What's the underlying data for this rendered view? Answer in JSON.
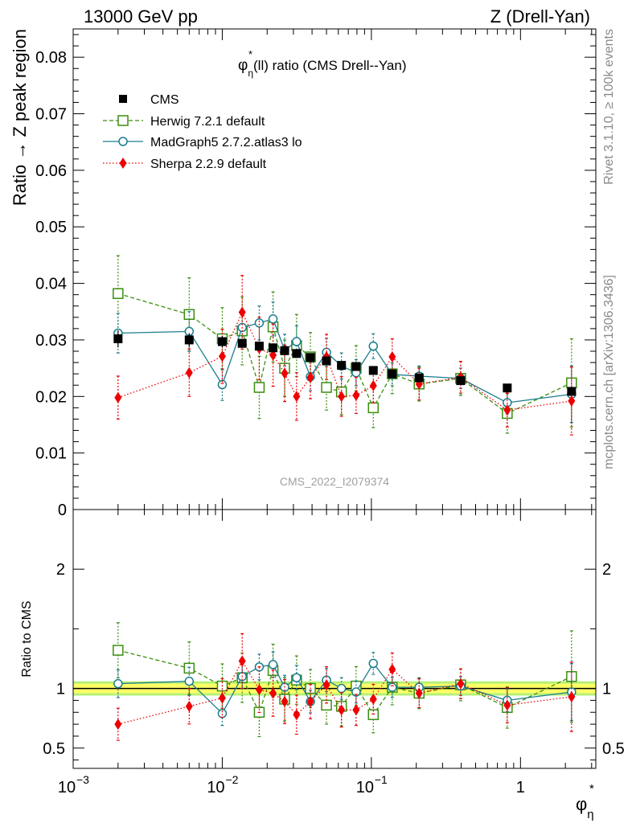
{
  "header": {
    "left": "13000 GeV pp",
    "right": "Z (Drell-Yan)"
  },
  "side_labels": {
    "rivet": "Rivet 3.1.10, ≥ 100k events",
    "mcplots": "mcplots.cern.ch [arXiv:1306.3436]"
  },
  "colors": {
    "cms": "#000000",
    "herwig": "#3a8f0e",
    "madgraph": "#1b7d8c",
    "sherpa": "#ee0000",
    "band_inner": "#ffff66",
    "band_outer": "#b6f07a"
  },
  "chart_data": [
    {
      "type": "scatter",
      "title": "(ll) ratio (CMS Drell--Yan)",
      "title_symbol": "φ",
      "title_sup": "*",
      "title_sub": "η",
      "ylabel": "Ratio → Z peak region",
      "xlabel_symbol": "φ",
      "xlabel_sup": "*",
      "xlabel_sub": "η",
      "xscale": "log",
      "xlim": [
        0.001,
        3.2
      ],
      "ylim": [
        0,
        0.085
      ],
      "yticks": [
        0,
        0.01,
        0.02,
        0.03,
        0.04,
        0.05,
        0.06,
        0.07,
        0.08
      ],
      "ytick_labels": [
        "0",
        "0.01",
        "0.02",
        "0.03",
        "0.04",
        "0.05",
        "0.06",
        "0.07",
        "0.08"
      ],
      "watermark": "CMS_2022_I2079374",
      "legend_position": "top-left",
      "x": [
        0.002,
        0.006,
        0.01,
        0.0136,
        0.0177,
        0.0219,
        0.0262,
        0.0315,
        0.039,
        0.05,
        0.063,
        0.079,
        0.103,
        0.138,
        0.209,
        0.397,
        0.815,
        2.2
      ],
      "series": [
        {
          "name": "CMS",
          "marker": "square-filled",
          "line": "none",
          "values": [
            0.0302,
            0.03,
            0.0297,
            0.0294,
            0.0289,
            0.0286,
            0.0281,
            0.0276,
            0.0269,
            0.0263,
            0.0255,
            0.0253,
            0.0246,
            0.024,
            0.0233,
            0.0228,
            0.0215,
            0.0209
          ],
          "errors": [
            0.0015,
            0.0012,
            0.001,
            0.0008,
            0.0007,
            0.0006,
            0.0006,
            0.0006,
            0.0005,
            0.0005,
            0.0005,
            0.0005,
            0.0005,
            0.0005,
            0.0005,
            0.0005,
            0.0006,
            0.0008
          ]
        },
        {
          "name": "Herwig 7.2.1 default",
          "marker": "square-open",
          "line": "dashed",
          "values": [
            0.0382,
            0.0345,
            0.0302,
            0.0316,
            0.0216,
            0.0323,
            0.025,
            0.029,
            0.027,
            0.0216,
            0.0208,
            0.025,
            0.018,
            0.024,
            0.0222,
            0.0232,
            0.017,
            0.0224
          ],
          "errors": [
            0.0067,
            0.0065,
            0.0055,
            0.006,
            0.0055,
            0.0062,
            0.005,
            0.0055,
            0.0043,
            0.004,
            0.004,
            0.004,
            0.0035,
            0.0035,
            0.003,
            0.003,
            0.0035,
            0.0078
          ]
        },
        {
          "name": "MadGraph5 2.7.2.atlas3 lo",
          "marker": "circle-open",
          "line": "solid",
          "values": [
            0.0312,
            0.0315,
            0.0221,
            0.0322,
            0.033,
            0.0337,
            0.0282,
            0.0297,
            0.0235,
            0.0278,
            0.0254,
            0.0242,
            0.0289,
            0.0239,
            0.0236,
            0.0232,
            0.0189,
            0.0204
          ],
          "errors": [
            0.0035,
            0.0035,
            0.0028,
            0.003,
            0.003,
            0.003,
            0.0028,
            0.0028,
            0.0025,
            0.0025,
            0.0023,
            0.0023,
            0.0022,
            0.002,
            0.0018,
            0.0018,
            0.002,
            0.005
          ]
        },
        {
          "name": "Sherpa 2.2.9 default",
          "marker": "diamond-filled",
          "line": "dotted",
          "values": [
            0.0198,
            0.0242,
            0.0271,
            0.0349,
            0.0285,
            0.0273,
            0.0241,
            0.02,
            0.0234,
            0.027,
            0.02,
            0.0202,
            0.0219,
            0.027,
            0.0222,
            0.0234,
            0.0176,
            0.0192
          ],
          "errors": [
            0.0038,
            0.0042,
            0.0048,
            0.0065,
            0.0055,
            0.0055,
            0.005,
            0.0042,
            0.0038,
            0.004,
            0.0035,
            0.0032,
            0.003,
            0.0032,
            0.0028,
            0.0028,
            0.003,
            0.006
          ]
        }
      ]
    },
    {
      "type": "scatter",
      "ylabel": "Ratio to CMS",
      "xscale": "log",
      "xlim": [
        0.001,
        3.2
      ],
      "ylim": [
        0.33,
        2.5
      ],
      "yticks": [
        0.5,
        1,
        2
      ],
      "ytick_labels": [
        "0.5",
        "1",
        "2"
      ],
      "xticks": [
        0.001,
        0.01,
        0.1,
        1
      ],
      "xtick_labels": [
        {
          "base": "10",
          "exp": "−3"
        },
        {
          "base": "10",
          "exp": "−2"
        },
        {
          "base": "10",
          "exp": "−1"
        },
        {
          "base": "1",
          "exp": ""
        }
      ],
      "band": {
        "inner": 0.04,
        "outer": 0.06
      },
      "reference": 1,
      "x": [
        0.002,
        0.006,
        0.01,
        0.0136,
        0.0177,
        0.0219,
        0.0262,
        0.0315,
        0.039,
        0.05,
        0.063,
        0.079,
        0.103,
        0.138,
        0.209,
        0.397,
        0.815,
        2.2
      ],
      "series": [
        {
          "name": "Herwig 7.2.1 default",
          "values": [
            1.32,
            1.17,
            1.02,
            1.09,
            0.8,
            1.15,
            0.91,
            1.07,
            1.0,
            0.86,
            0.85,
            1.02,
            0.78,
            1.01,
            0.96,
            1.03,
            0.84,
            1.1
          ]
        },
        {
          "name": "MadGraph5 2.7.2.atlas3 lo",
          "values": [
            1.04,
            1.06,
            0.79,
            1.1,
            1.18,
            1.2,
            1.01,
            1.09,
            0.89,
            1.07,
            1.0,
            0.97,
            1.21,
            1.01,
            1.01,
            1.02,
            0.9,
            0.97
          ]
        },
        {
          "name": "Sherpa 2.2.9 default",
          "values": [
            0.7,
            0.85,
            0.92,
            1.23,
            0.99,
            0.96,
            0.89,
            0.78,
            0.89,
            1.03,
            0.82,
            0.82,
            0.91,
            1.16,
            0.96,
            1.04,
            0.86,
            0.93
          ]
        }
      ]
    }
  ]
}
